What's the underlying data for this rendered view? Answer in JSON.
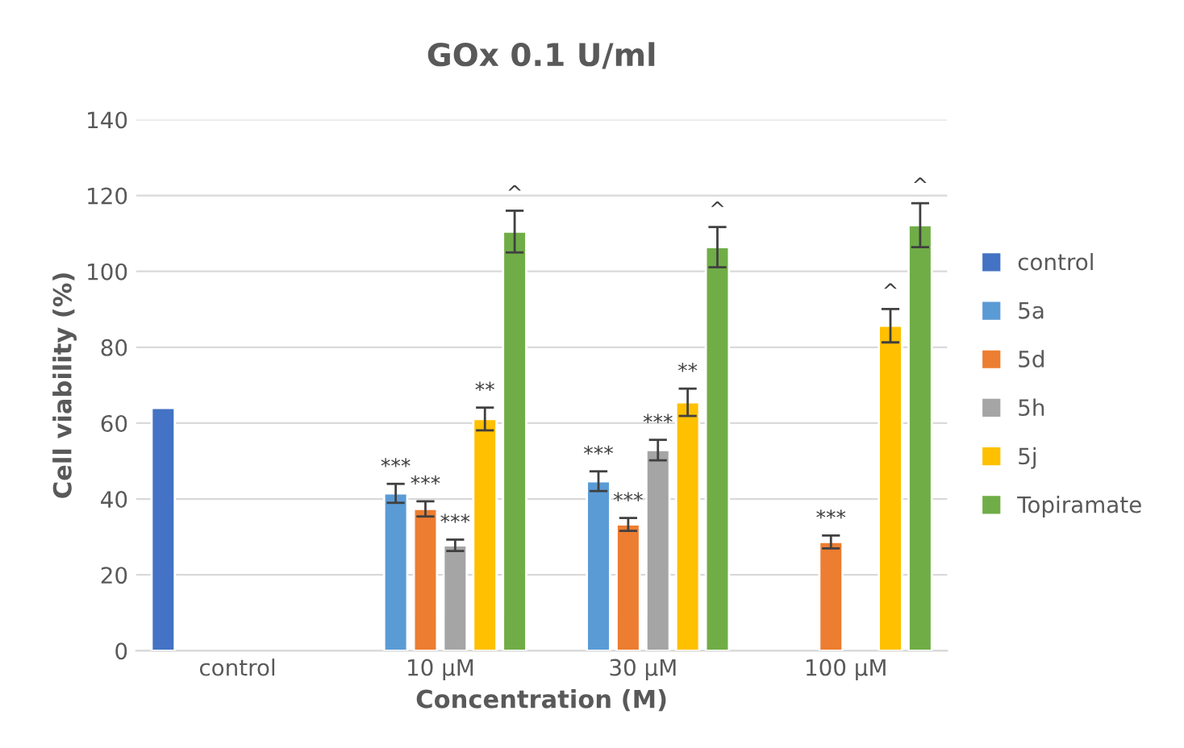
{
  "chart_data": {
    "type": "bar",
    "title": "GOx 0.1 U/ml",
    "xlabel": "Concentration (M)",
    "ylabel": "Cell viability (%)",
    "categories": [
      "control",
      "10 µM",
      "30 µM",
      "100 µM"
    ],
    "series": [
      {
        "name": "control",
        "color": "#4472c4",
        "values": [
          64,
          null,
          null,
          null
        ],
        "errors": [
          null,
          null,
          null,
          null
        ]
      },
      {
        "name": "5a",
        "color": "#5b9bd5",
        "values": [
          null,
          41.5,
          44.7,
          null
        ],
        "errors": [
          null,
          2.5,
          2.6,
          null
        ]
      },
      {
        "name": "5d",
        "color": "#ed7d31",
        "values": [
          null,
          37.4,
          33.3,
          28.7
        ],
        "errors": [
          null,
          2,
          1.7,
          1.7
        ]
      },
      {
        "name": "5h",
        "color": "#a5a5a5",
        "values": [
          null,
          27.8,
          52.9,
          null
        ],
        "errors": [
          null,
          1.5,
          2.7,
          null
        ]
      },
      {
        "name": "5j",
        "color": "#ffc000",
        "values": [
          null,
          61.1,
          65.5,
          85.7
        ],
        "errors": [
          null,
          3,
          3.6,
          4.4
        ]
      },
      {
        "name": "Topiramate",
        "color": "#70ad47",
        "values": [
          null,
          110.5,
          106.4,
          112.2
        ],
        "errors": [
          null,
          5.5,
          5.3,
          5.8
        ]
      }
    ],
    "ylim": [
      0,
      140
    ],
    "yticks": [
      0,
      20,
      40,
      60,
      80,
      100,
      120,
      140
    ],
    "grid": "y",
    "legend": "right",
    "annotations": [
      "***",
      "***",
      "***",
      "**",
      "^",
      "***",
      "***",
      "***",
      "**",
      "^",
      "***",
      "^",
      "^"
    ]
  }
}
